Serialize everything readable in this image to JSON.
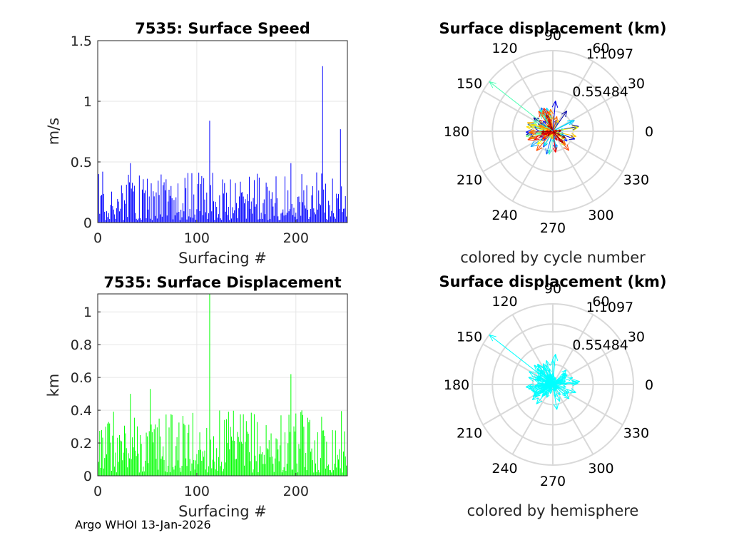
{
  "footer": "Argo WHOI 13-Jan-2026",
  "chart_data": [
    {
      "type": "bar",
      "title": "7535: Surface Speed",
      "xlabel": "Surfacing #",
      "ylabel": "m/s",
      "xlim": [
        0,
        252
      ],
      "ylim": [
        0,
        1.5
      ],
      "xticks": [
        "0",
        "100",
        "200"
      ],
      "yticks": [
        "0",
        "0.5",
        "1",
        "1.5"
      ],
      "grid": true,
      "color": "#0000ff",
      "series_count": 252,
      "peaks": [
        {
          "x": 33,
          "y": 0.49
        },
        {
          "x": 113,
          "y": 0.84
        },
        {
          "x": 195,
          "y": 0.49
        },
        {
          "x": 227,
          "y": 1.29
        },
        {
          "x": 245,
          "y": 0.77
        }
      ],
      "typical_range": [
        0.02,
        0.42
      ]
    },
    {
      "type": "bar",
      "title": "7535: Surface Displacement",
      "xlabel": "Surfacing #",
      "ylabel": "km",
      "xlim": [
        0,
        252
      ],
      "ylim": [
        0,
        1.1097
      ],
      "xticks": [
        "0",
        "100",
        "200"
      ],
      "yticks": [
        "0",
        "0.2",
        "0.4",
        "0.6",
        "0.8",
        "1"
      ],
      "grid": true,
      "color": "#00ff00",
      "series_count": 252,
      "peaks": [
        {
          "x": 113,
          "y": 1.1097
        },
        {
          "x": 195,
          "y": 0.62
        },
        {
          "x": 53,
          "y": 0.53
        },
        {
          "x": 33,
          "y": 0.5
        }
      ],
      "typical_range": [
        0.02,
        0.4
      ]
    },
    {
      "type": "polar-quiver",
      "title": "Surface displacement (km)",
      "caption": "colored by cycle number",
      "rlim": [
        0,
        1.1097
      ],
      "rticks": [
        "0.55484",
        "1.1097"
      ],
      "angle_ticks": [
        "0",
        "30",
        "60",
        "90",
        "120",
        "150",
        "180",
        "210",
        "240",
        "270",
        "300",
        "330"
      ],
      "colormap": "jet",
      "max_vector": {
        "angle_deg": 142,
        "r": 1.1097
      }
    },
    {
      "type": "polar-quiver",
      "title": "Surface displacement (km)",
      "caption": "colored by hemisphere",
      "rlim": [
        0,
        1.1097
      ],
      "rticks": [
        "0.55484",
        "1.1097"
      ],
      "angle_ticks": [
        "0",
        "30",
        "60",
        "90",
        "120",
        "150",
        "180",
        "210",
        "240",
        "270",
        "300",
        "330"
      ],
      "color": "#00ffff",
      "max_vector": {
        "angle_deg": 142,
        "r": 1.1097
      }
    }
  ]
}
